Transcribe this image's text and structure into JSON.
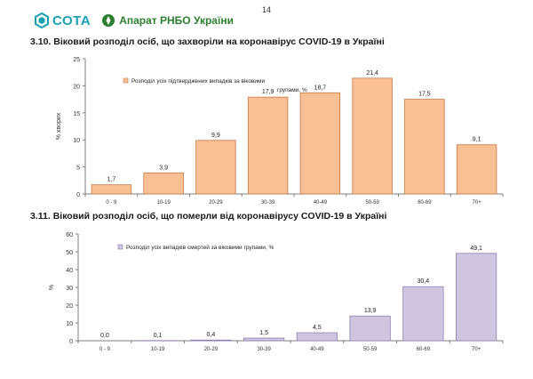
{
  "page": {
    "number": "14"
  },
  "header": {
    "brand": "СОТА",
    "org": "Апарат РНБО України"
  },
  "colors": {
    "bar1": "#f9bf95",
    "bar1_stroke": "#c67a48",
    "bar2": "#cfc5de",
    "bar2_stroke": "#8f80ad",
    "axis": "#7f7f7f",
    "grid": "#d9d9d9"
  },
  "chart_data": [
    {
      "id": "cases",
      "type": "bar",
      "title": "3.10. Віковий розподіл осіб, що захворіли на коронавірус COVID-19 в Україні",
      "ylabel": "% хворих",
      "xlabel": "",
      "ylim": [
        0,
        25
      ],
      "yticks": [
        "0",
        "5",
        "10",
        "15",
        "20",
        "25"
      ],
      "ytick_values": [
        0,
        5,
        10,
        15,
        20,
        25
      ],
      "categories": [
        "0 - 9",
        "10-19",
        "20-29",
        "30-39",
        "40-49",
        "50-59",
        "60-69",
        "70+"
      ],
      "values": [
        1.7,
        3.9,
        9.9,
        17.9,
        18.7,
        21.4,
        17.5,
        9.1
      ],
      "value_labels": [
        "1,7",
        "3,9",
        "9,9",
        "17,9",
        "18,7",
        "21,4",
        "17,5",
        "9,1"
      ],
      "legend": [
        "Розподіл усіх підтверджених випадків за віковими",
        "групами, %"
      ],
      "legend_position": "top-left",
      "grid": false
    },
    {
      "id": "deaths",
      "type": "bar",
      "title": "3.11. Віковий розподіл осіб, що померли від коронавірусу COVID-19 в Україні",
      "ylabel": "%",
      "xlabel": "",
      "ylim": [
        0,
        60
      ],
      "yticks": [
        "0",
        "10",
        "20",
        "30",
        "40",
        "50",
        "60"
      ],
      "ytick_values": [
        0,
        10,
        20,
        30,
        40,
        50,
        60
      ],
      "categories": [
        "0 - 9",
        "10-19",
        "20-29",
        "30-39",
        "40-49",
        "50-59",
        "60-69",
        "70+"
      ],
      "values": [
        0.0,
        0.1,
        0.4,
        1.5,
        4.5,
        13.9,
        30.4,
        49.1
      ],
      "value_labels": [
        "0,0",
        "0,1",
        "0,4",
        "1,5",
        "4,5",
        "13,9",
        "30,4",
        "49,1"
      ],
      "legend": [
        "Розподіл усіх випадків смертей за віковими групами, %"
      ],
      "legend_position": "top-left",
      "grid": false
    }
  ]
}
